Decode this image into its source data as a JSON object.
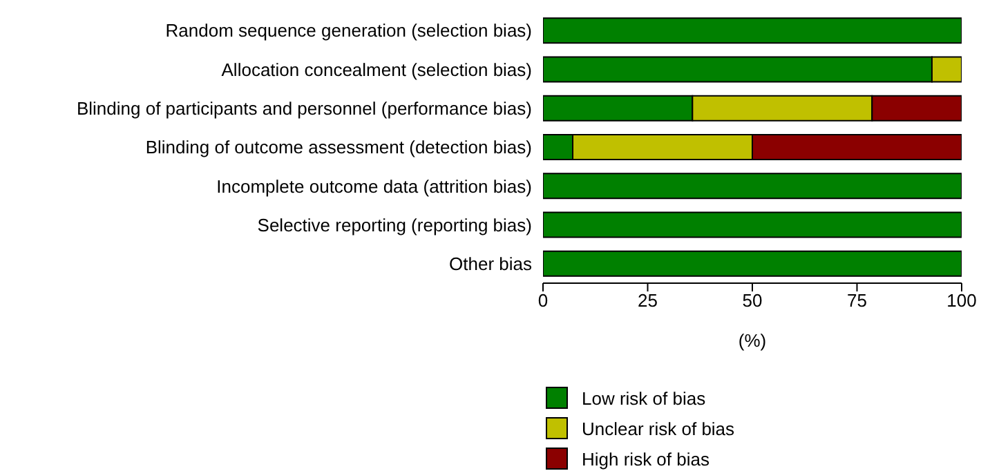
{
  "chart_data": {
    "type": "bar",
    "orientation": "horizontal",
    "stacked": true,
    "categories": [
      "Random sequence generation (selection bias)",
      "Allocation concealment (selection bias)",
      "Blinding of participants and personnel (performance bias)",
      "Blinding of outcome assessment (detection bias)",
      "Incomplete outcome data (attrition bias)",
      "Selective reporting (reporting bias)",
      "Other bias"
    ],
    "series": [
      {
        "name": "Low risk of bias",
        "color": "#008000",
        "values": [
          100,
          92.9,
          35.7,
          7.1,
          100,
          100,
          100
        ]
      },
      {
        "name": "Unclear risk of bias",
        "color": "#c0c000",
        "values": [
          0,
          7.1,
          42.9,
          42.9,
          0,
          0,
          0
        ]
      },
      {
        "name": "High risk of bias",
        "color": "#8b0000",
        "values": [
          0,
          0,
          21.4,
          50,
          0,
          0,
          0
        ]
      }
    ],
    "xlabel": "(%)",
    "xlim": [
      0,
      100
    ],
    "xticks": [
      0,
      25,
      50,
      75,
      100
    ],
    "grid": false,
    "legend": "bottom"
  }
}
